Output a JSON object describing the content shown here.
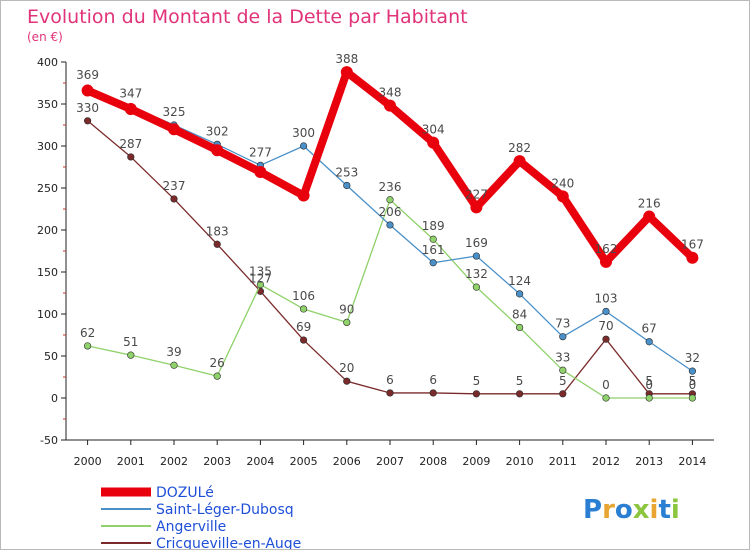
{
  "title": "Evolution du Montant de la Dette par Habitant",
  "subtitle": "(en €)",
  "logo": {
    "text": "Proxiti",
    "letters": [
      "P",
      "r",
      "o",
      "x",
      "i",
      "t",
      "i"
    ],
    "colors": [
      "#2a7fd3",
      "#e8a531",
      "#2a7fd3",
      "#8cc63f",
      "#e8a531",
      "#2a7fd3",
      "#8cc63f"
    ]
  },
  "chart_data": {
    "type": "line",
    "x": [
      "2000",
      "2001",
      "2002",
      "2003",
      "2004",
      "2005",
      "2006",
      "2007",
      "2008",
      "2009",
      "2010",
      "2011",
      "2012",
      "2013",
      "2014"
    ],
    "ylim": [
      -50,
      400
    ],
    "yticks": [
      "-50",
      "0",
      "50",
      "100",
      "150",
      "200",
      "250",
      "300",
      "350",
      "400"
    ],
    "grid": false,
    "legend_position": "bottom-left",
    "series": [
      {
        "name": "DOZULé",
        "color": "#e8000c",
        "values": [
          366,
          344,
          320,
          295,
          269,
          241,
          388,
          348,
          304,
          227,
          282,
          240,
          162,
          216,
          167
        ],
        "labels": [
          "",
          "",
          "",
          "",
          "",
          "",
          "388",
          "348",
          "304",
          "227",
          "282",
          "240",
          "162",
          "216",
          "167"
        ]
      },
      {
        "name": "Saint-Léger-Dubosq",
        "color": "#4a90c8",
        "values": [
          369,
          347,
          325,
          302,
          277,
          300,
          253,
          206,
          161,
          169,
          124,
          73,
          103,
          67,
          32
        ],
        "labels": [
          "369",
          "347",
          "325",
          "302",
          "277",
          "300",
          "253",
          "206",
          "161",
          "169",
          "124",
          "73",
          "103",
          "67",
          "32"
        ]
      },
      {
        "name": "Angerville",
        "color": "#8fd16a",
        "values": [
          62,
          51,
          39,
          26,
          135,
          106,
          90,
          236,
          189,
          132,
          84,
          33,
          0,
          0,
          0
        ],
        "labels": [
          "62",
          "51",
          "39",
          "26",
          "135",
          "106",
          "90",
          "236",
          "189",
          "132",
          "84",
          "33",
          "0",
          "0",
          "0"
        ]
      },
      {
        "name": "Cricqueville-en-Auge",
        "color": "#7a2a2a",
        "values": [
          330,
          287,
          237,
          183,
          127,
          69,
          20,
          6,
          6,
          5,
          5,
          5,
          70,
          5,
          5
        ],
        "labels": [
          "330",
          "287",
          "237",
          "183",
          "127",
          "69",
          "20",
          "6",
          "6",
          "5",
          "5",
          "5",
          "70",
          "5",
          "5"
        ]
      }
    ]
  }
}
